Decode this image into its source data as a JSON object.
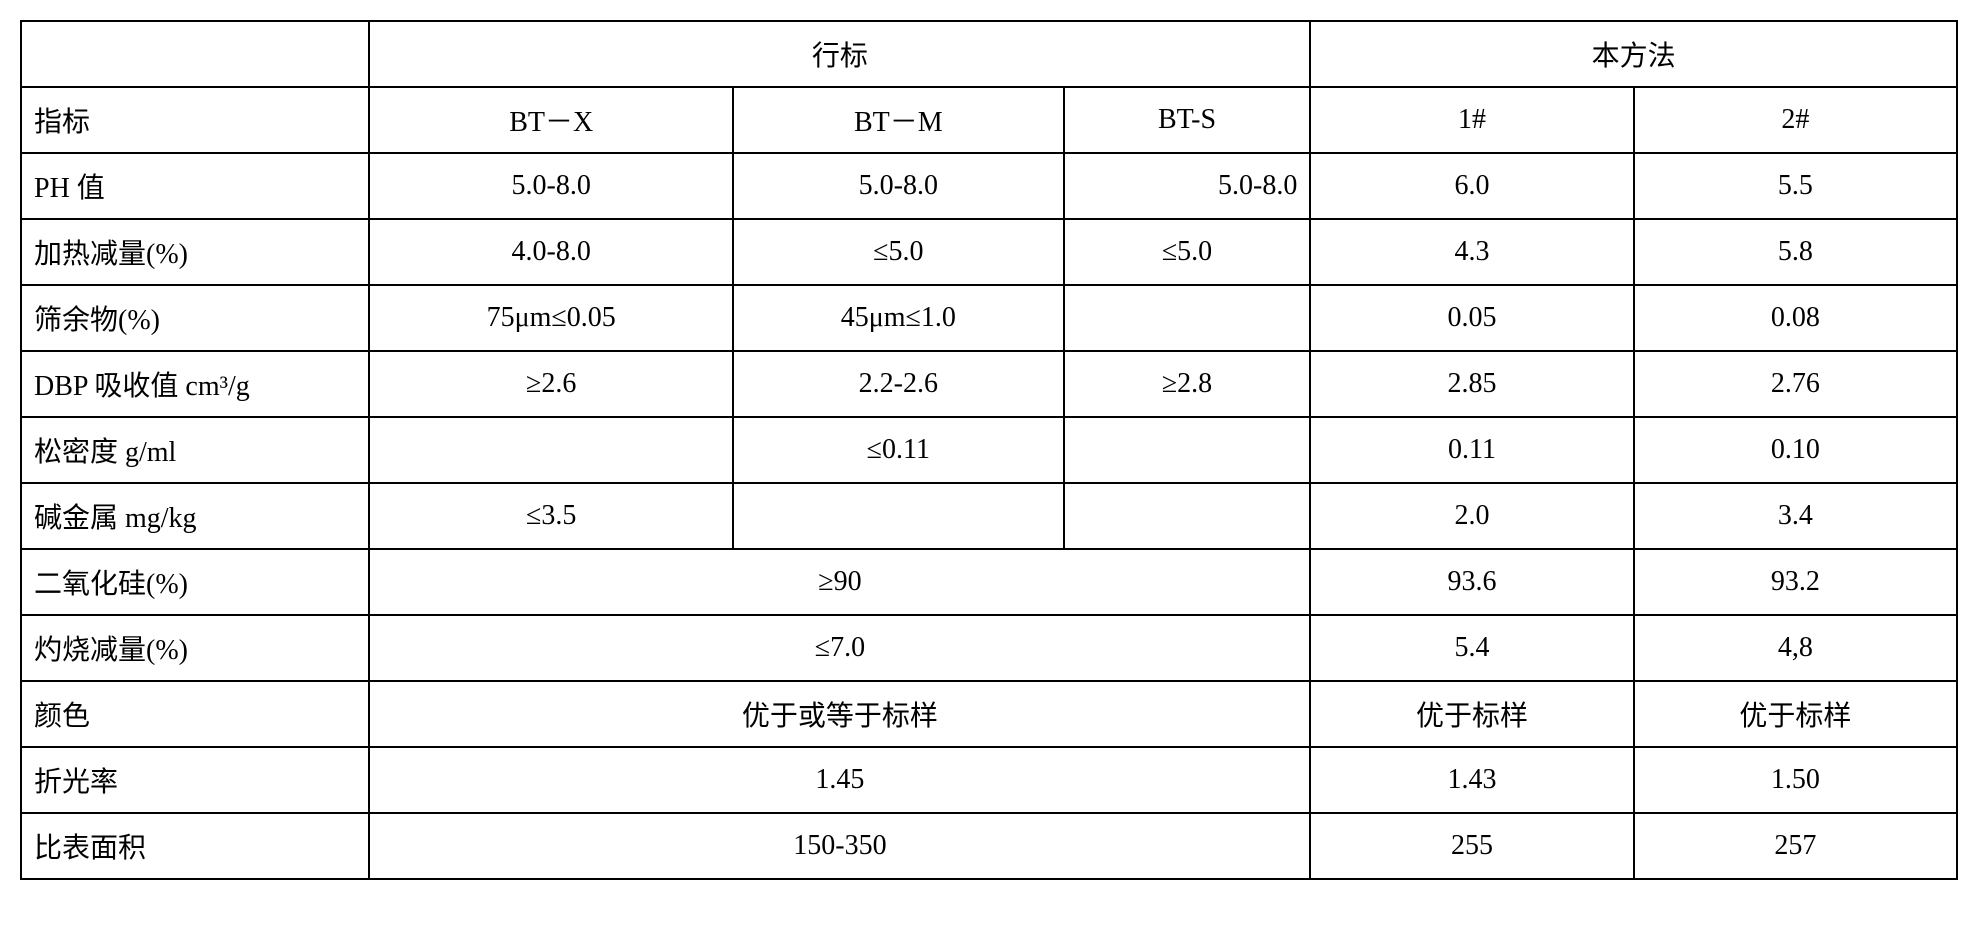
{
  "table": {
    "border_color": "#000000",
    "background_color": "#ffffff",
    "text_color": "#000000",
    "font_size": 28,
    "headers": {
      "group1": "行标",
      "group2": "本方法",
      "col0": "指标",
      "col1": "BT－X",
      "col2": "BT－M",
      "col3": "BT-S",
      "col4": "1#",
      "col5": "2#"
    },
    "rows": [
      {
        "label": "PH 值",
        "c1": "5.0-8.0",
        "c2": "5.0-8.0",
        "c3": "5.0-8.0",
        "c4": "6.0",
        "c5": "5.5"
      },
      {
        "label": "加热减量(%)",
        "c1": "4.0-8.0",
        "c2": "≤5.0",
        "c3": "≤5.0",
        "c4": "4.3",
        "c5": "5.8"
      },
      {
        "label": "筛余物(%)",
        "c1": "75μm≤0.05",
        "c2": "45μm≤1.0",
        "c3": "",
        "c4": "0.05",
        "c5": "0.08"
      },
      {
        "label": "DBP 吸收值 cm³/g",
        "c1": "≥2.6",
        "c2": "2.2-2.6",
        "c3": "≥2.8",
        "c4": "2.85",
        "c5": "2.76"
      },
      {
        "label": "松密度 g/ml",
        "c1": "",
        "c2": "≤0.11",
        "c3": "",
        "c4": "0.11",
        "c5": "0.10"
      },
      {
        "label": "碱金属 mg/kg",
        "c1": "≤3.5",
        "c2": "",
        "c3": "",
        "c4": "2.0",
        "c5": "3.4"
      },
      {
        "label": "二氧化硅(%)",
        "merged": "≥90",
        "c4": "93.6",
        "c5": "93.2"
      },
      {
        "label": "灼烧减量(%)",
        "merged": "≤7.0",
        "c4": "5.4",
        "c5": "4,8"
      },
      {
        "label": "颜色",
        "merged": "优于或等于标样",
        "c4": "优于标样",
        "c5": "优于标样"
      },
      {
        "label": "折光率",
        "merged": "1.45",
        "c4": "1.43",
        "c5": "1.50"
      },
      {
        "label": "比表面积",
        "merged": "150-350",
        "c4": "255",
        "c5": "257"
      }
    ]
  }
}
